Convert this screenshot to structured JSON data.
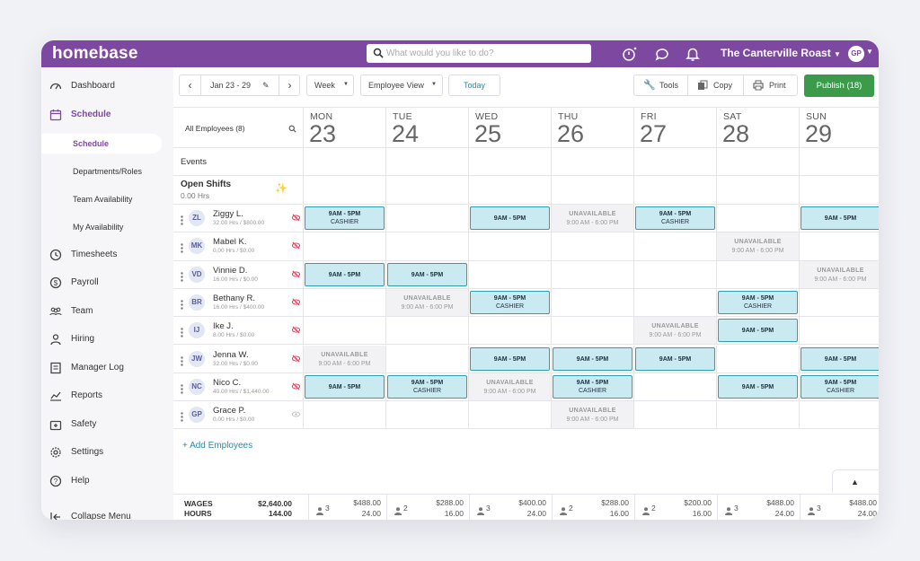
{
  "topbar": {
    "logo": "homebase",
    "search_placeholder": "What would you like to do?",
    "location": "The Canterville Roast",
    "avatar_initials": "GP"
  },
  "sidebar": {
    "items": [
      {
        "label": "Dashboard",
        "icon": "gauge-icon"
      },
      {
        "label": "Schedule",
        "icon": "calendar-icon"
      },
      {
        "label": "Timesheets",
        "icon": "clock-icon"
      },
      {
        "label": "Payroll",
        "icon": "dollar-icon"
      },
      {
        "label": "Team",
        "icon": "team-icon"
      },
      {
        "label": "Hiring",
        "icon": "person-icon"
      },
      {
        "label": "Manager Log",
        "icon": "logbook-icon"
      },
      {
        "label": "Reports",
        "icon": "chart-icon"
      },
      {
        "label": "Safety",
        "icon": "firstaid-icon"
      },
      {
        "label": "Settings",
        "icon": "gear-icon"
      },
      {
        "label": "Help",
        "icon": "help-icon"
      },
      {
        "label": "Collapse Menu",
        "icon": "collapse-icon"
      }
    ],
    "schedule_sub": [
      "Schedule",
      "Departments/Roles",
      "Team Availability",
      "My Availability"
    ]
  },
  "toolbar": {
    "date_range": "Jan 23 - 29",
    "range_type": "Week",
    "view": "Employee View",
    "today": "Today",
    "tools": "Tools",
    "copy": "Copy",
    "print": "Print",
    "publish": "Publish (18)"
  },
  "grid": {
    "all_employees": "All Employees (8)",
    "events_label": "Events",
    "open_shifts_label": "Open Shifts",
    "open_shifts_hours": "0.00 Hrs",
    "days": [
      {
        "name": "MON",
        "num": "23"
      },
      {
        "name": "TUE",
        "num": "24"
      },
      {
        "name": "WED",
        "num": "25"
      },
      {
        "name": "THU",
        "num": "26"
      },
      {
        "name": "FRI",
        "num": "27"
      },
      {
        "name": "SAT",
        "num": "28"
      },
      {
        "name": "SUN",
        "num": "29"
      }
    ],
    "employees": [
      {
        "initials": "ZL",
        "name": "Ziggy L.",
        "sub": "32.00 Hrs / $800.00",
        "cells": [
          [
            "s",
            "9AM - 5PM",
            "CASHIER"
          ],
          null,
          [
            "s",
            "9AM - 5PM",
            ""
          ],
          [
            "u",
            "UNAVAILABLE",
            "9:00 AM - 6:00 PM"
          ],
          [
            "s",
            "9AM - 5PM",
            "CASHIER"
          ],
          null,
          [
            "s",
            "9AM - 5PM",
            ""
          ]
        ]
      },
      {
        "initials": "MK",
        "name": "Mabel K.",
        "sub": "0.00 Hrs / $0.00",
        "cells": [
          null,
          null,
          null,
          null,
          null,
          [
            "u",
            "UNAVAILABLE",
            "9:00 AM - 6:00 PM"
          ],
          null
        ]
      },
      {
        "initials": "VD",
        "name": "Vinnie D.",
        "sub": "16.00 Hrs / $0.00",
        "cells": [
          [
            "s",
            "9AM - 5PM",
            ""
          ],
          [
            "s",
            "9AM - 5PM",
            ""
          ],
          null,
          null,
          null,
          null,
          [
            "u",
            "UNAVAILABLE",
            "9:00 AM - 6:00 PM"
          ]
        ]
      },
      {
        "initials": "BR",
        "name": "Bethany R.",
        "sub": "16.00 Hrs / $400.00",
        "cells": [
          null,
          [
            "u",
            "UNAVAILABLE",
            "9:00 AM - 6:00 PM"
          ],
          [
            "s",
            "9AM - 5PM",
            "CASHIER"
          ],
          null,
          null,
          [
            "s",
            "9AM - 5PM",
            "CASHIER"
          ],
          null
        ]
      },
      {
        "initials": "IJ",
        "name": "Ike J.",
        "sub": "8.00 Hrs / $0.00",
        "cells": [
          null,
          null,
          null,
          null,
          [
            "u",
            "UNAVAILABLE",
            "9:00 AM - 6:00 PM"
          ],
          [
            "s",
            "9AM - 5PM",
            ""
          ],
          null
        ]
      },
      {
        "initials": "JW",
        "name": "Jenna W.",
        "sub": "32.00 Hrs / $0.00",
        "cells": [
          [
            "u",
            "UNAVAILABLE",
            "9:00 AM - 6:00 PM"
          ],
          null,
          [
            "s",
            "9AM - 5PM",
            ""
          ],
          [
            "s",
            "9AM - 5PM",
            ""
          ],
          [
            "s",
            "9AM - 5PM",
            ""
          ],
          null,
          [
            "s",
            "9AM - 5PM",
            ""
          ]
        ]
      },
      {
        "initials": "NC",
        "name": "Nico C.",
        "sub": "40.00 Hrs / $1,440.00",
        "cells": [
          [
            "s",
            "9AM - 5PM",
            ""
          ],
          [
            "s",
            "9AM - 5PM",
            "CASHIER"
          ],
          [
            "u",
            "UNAVAILABLE",
            "9:00 AM - 6:00 PM"
          ],
          [
            "s",
            "9AM - 5PM",
            "CASHIER"
          ],
          null,
          [
            "s",
            "9AM - 5PM",
            ""
          ],
          [
            "s",
            "9AM - 5PM",
            "CASHIER"
          ]
        ]
      },
      {
        "initials": "GP",
        "name": "Grace P.",
        "sub": "0.00 Hrs / $0.00",
        "cells": [
          null,
          null,
          null,
          [
            "u",
            "UNAVAILABLE",
            "9:00 AM - 6:00 PM"
          ],
          null,
          null,
          null
        ]
      }
    ],
    "add_employees": "+ Add Employees"
  },
  "footer": {
    "wages_label": "WAGES",
    "hours_label": "HOURS",
    "wages_total": "$2,640.00",
    "hours_total": "144.00",
    "days": [
      {
        "count": "3",
        "wages": "$488.00",
        "hours": "24.00"
      },
      {
        "count": "2",
        "wages": "$288.00",
        "hours": "16.00"
      },
      {
        "count": "3",
        "wages": "$400.00",
        "hours": "24.00"
      },
      {
        "count": "2",
        "wages": "$288.00",
        "hours": "16.00"
      },
      {
        "count": "2",
        "wages": "$200.00",
        "hours": "16.00"
      },
      {
        "count": "3",
        "wages": "$488.00",
        "hours": "24.00"
      },
      {
        "count": "3",
        "wages": "$488.00",
        "hours": "24.00"
      }
    ]
  },
  "colors": {
    "brand": "#7d49a0",
    "publish": "#3c9a4b",
    "shift_fill": "#c9eaf0",
    "shift_border": "#2e9db7"
  }
}
